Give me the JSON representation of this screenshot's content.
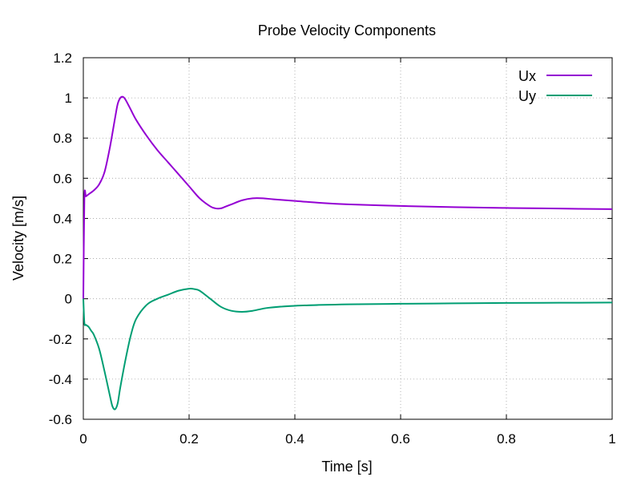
{
  "chart_data": {
    "type": "line",
    "title": "Probe Velocity Components",
    "xlabel": "Time [s]",
    "ylabel": "Velocity [m/s]",
    "xlim": [
      0,
      1
    ],
    "ylim": [
      -0.6,
      1.2
    ],
    "x_ticks": [
      "0",
      "0.2",
      "0.4",
      "0.6",
      "0.8",
      "1"
    ],
    "x_tick_values": [
      0,
      0.2,
      0.4,
      0.6,
      0.8,
      1.0
    ],
    "y_ticks": [
      "-0.6",
      "-0.4",
      "-0.2",
      "0",
      "0.2",
      "0.4",
      "0.6",
      "0.8",
      "1",
      "1.2"
    ],
    "y_tick_values": [
      -0.6,
      -0.4,
      -0.2,
      0,
      0.2,
      0.4,
      0.6,
      0.8,
      1.0,
      1.2
    ],
    "grid": true,
    "legend_position": "top-right",
    "series": [
      {
        "name": "Ux",
        "color": "#9400d3",
        "x": [
          0,
          0.002,
          0.005,
          0.01,
          0.02,
          0.03,
          0.04,
          0.05,
          0.06,
          0.065,
          0.07,
          0.075,
          0.08,
          0.09,
          0.1,
          0.12,
          0.14,
          0.16,
          0.18,
          0.2,
          0.22,
          0.24,
          0.25,
          0.26,
          0.27,
          0.28,
          0.3,
          0.32,
          0.34,
          0.36,
          0.4,
          0.45,
          0.5,
          0.6,
          0.7,
          0.8,
          0.9,
          1.0
        ],
        "y": [
          0.0,
          0.5,
          0.51,
          0.52,
          0.54,
          0.57,
          0.63,
          0.75,
          0.9,
          0.97,
          1.0,
          1.005,
          0.99,
          0.94,
          0.89,
          0.81,
          0.74,
          0.68,
          0.62,
          0.56,
          0.5,
          0.46,
          0.45,
          0.45,
          0.46,
          0.47,
          0.49,
          0.5,
          0.5,
          0.495,
          0.487,
          0.477,
          0.47,
          0.462,
          0.456,
          0.452,
          0.449,
          0.446
        ]
      },
      {
        "name": "Uy",
        "color": "#009e73",
        "x": [
          0,
          0.002,
          0.005,
          0.01,
          0.015,
          0.02,
          0.03,
          0.04,
          0.05,
          0.055,
          0.06,
          0.065,
          0.07,
          0.08,
          0.09,
          0.1,
          0.12,
          0.14,
          0.16,
          0.18,
          0.2,
          0.21,
          0.22,
          0.24,
          0.26,
          0.28,
          0.3,
          0.32,
          0.35,
          0.4,
          0.5,
          0.6,
          0.7,
          0.8,
          0.9,
          1.0
        ],
        "y": [
          0.0,
          -0.12,
          -0.13,
          -0.14,
          -0.16,
          -0.18,
          -0.25,
          -0.36,
          -0.48,
          -0.535,
          -0.55,
          -0.52,
          -0.44,
          -0.3,
          -0.18,
          -0.1,
          -0.03,
          0.0,
          0.02,
          0.04,
          0.05,
          0.048,
          0.04,
          0.0,
          -0.04,
          -0.06,
          -0.065,
          -0.06,
          -0.045,
          -0.035,
          -0.028,
          -0.025,
          -0.023,
          -0.021,
          -0.02,
          -0.019
        ]
      }
    ]
  }
}
